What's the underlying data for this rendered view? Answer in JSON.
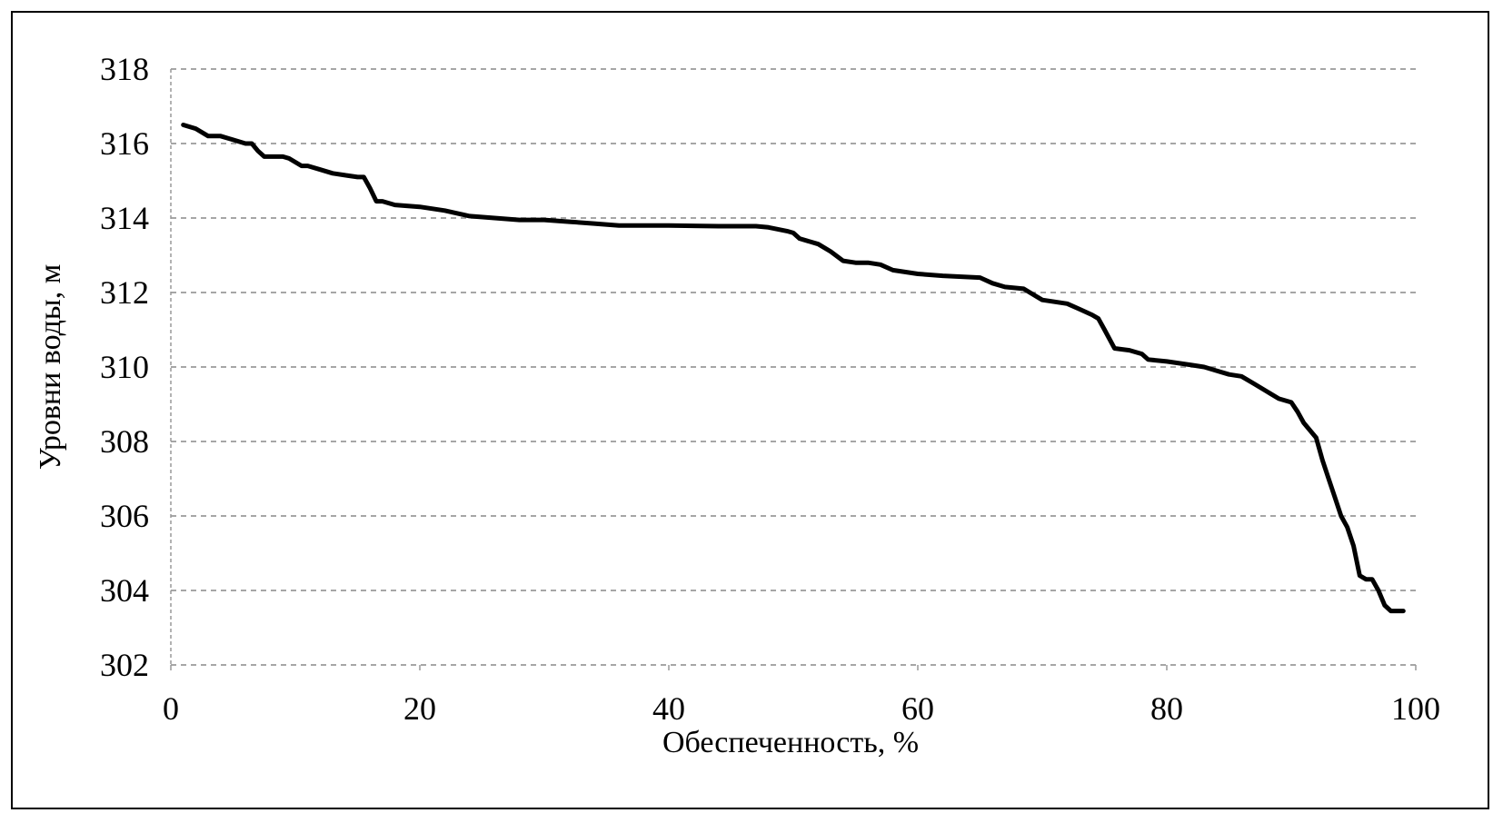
{
  "chart_data": {
    "type": "line",
    "x_label": "Обеспеченность, %",
    "y_label": "Уровни воды, м",
    "x": [
      1,
      2,
      3,
      4,
      5,
      6,
      6.5,
      7,
      7.5,
      9,
      9.5,
      10.5,
      11,
      12,
      13,
      14,
      15,
      15.5,
      16,
      16.5,
      17,
      18,
      20,
      22,
      24,
      26,
      28,
      30,
      32,
      34,
      36,
      40,
      44,
      47,
      48,
      49.5,
      50,
      50.5,
      52,
      53,
      54,
      55,
      56,
      57,
      58,
      60,
      62,
      65,
      66,
      67,
      68.5,
      69,
      70,
      72,
      73,
      74,
      74.5,
      75,
      75.8,
      77,
      78,
      78.5,
      80,
      81,
      82,
      83,
      84,
      85,
      86,
      87,
      88,
      89,
      90,
      90.5,
      91,
      92,
      92.5,
      93,
      93.5,
      94,
      94.5,
      95,
      95.5,
      96,
      96.5,
      97,
      97.5,
      98,
      99
    ],
    "values": [
      316.5,
      316.4,
      316.2,
      316.2,
      316.1,
      316.0,
      316.0,
      315.8,
      315.65,
      315.65,
      315.6,
      315.4,
      315.4,
      315.3,
      315.2,
      315.15,
      315.1,
      315.1,
      314.8,
      314.45,
      314.45,
      314.35,
      314.3,
      314.2,
      314.05,
      314.0,
      313.95,
      313.95,
      313.9,
      313.85,
      313.8,
      313.8,
      313.78,
      313.78,
      313.75,
      313.65,
      313.6,
      313.45,
      313.3,
      313.1,
      312.85,
      312.8,
      312.8,
      312.75,
      312.6,
      312.5,
      312.45,
      312.4,
      312.25,
      312.15,
      312.1,
      312.0,
      311.8,
      311.7,
      311.55,
      311.4,
      311.3,
      311.0,
      310.5,
      310.45,
      310.35,
      310.2,
      310.15,
      310.1,
      310.05,
      310.0,
      309.9,
      309.8,
      309.75,
      309.55,
      309.35,
      309.15,
      309.05,
      308.8,
      308.5,
      308.1,
      307.5,
      307.0,
      306.5,
      306.0,
      305.7,
      305.2,
      304.4,
      304.3,
      304.3,
      304.0,
      303.6,
      303.45,
      303.45
    ],
    "color": "#000000",
    "xlim": [
      0,
      100
    ],
    "xticks": [
      0,
      20,
      40,
      60,
      80,
      100
    ],
    "ylim": [
      302,
      318
    ],
    "yticks": [
      302,
      304,
      306,
      308,
      310,
      312,
      314,
      316,
      318
    ],
    "grid": true
  }
}
